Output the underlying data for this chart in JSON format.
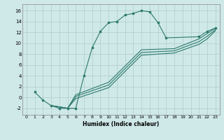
{
  "title": "",
  "xlabel": "Humidex (Indice chaleur)",
  "background_color": "#cfe8e8",
  "grid_color": "#b0cccc",
  "line_color": "#2d7b6e",
  "xlim": [
    -0.5,
    23.5
  ],
  "ylim": [
    -3.2,
    17.2
  ],
  "xticks": [
    0,
    1,
    2,
    3,
    4,
    5,
    6,
    7,
    8,
    9,
    10,
    11,
    12,
    13,
    14,
    15,
    16,
    17,
    18,
    19,
    20,
    21,
    22,
    23
  ],
  "yticks": [
    -2,
    0,
    2,
    4,
    6,
    8,
    10,
    12,
    14,
    16
  ],
  "curve1_x": [
    1,
    2,
    3,
    4,
    5,
    6,
    7,
    8,
    9,
    10,
    11,
    12,
    13,
    14,
    15,
    16,
    17,
    21,
    22,
    23
  ],
  "curve1_y": [
    1,
    -0.5,
    -1.5,
    -2,
    -2,
    -2,
    4,
    9.2,
    12.2,
    13.8,
    14.0,
    15.2,
    15.5,
    16.0,
    15.8,
    13.8,
    11.0,
    11.2,
    12.2,
    12.8
  ],
  "curve2_x": [
    3,
    5,
    6,
    10,
    14,
    18,
    21,
    22,
    23
  ],
  "curve2_y": [
    -1.5,
    -2,
    0.5,
    2.8,
    8.8,
    9.0,
    10.8,
    11.8,
    12.8
  ],
  "curve3_x": [
    3,
    5,
    6,
    10,
    14,
    18,
    21,
    22,
    23
  ],
  "curve3_y": [
    -1.5,
    -2,
    0.2,
    2.3,
    8.3,
    8.6,
    10.3,
    11.3,
    12.5
  ],
  "curve4_x": [
    3,
    5,
    6,
    10,
    14,
    18,
    21,
    22,
    23
  ],
  "curve4_y": [
    -1.5,
    -2,
    -0.2,
    1.8,
    7.8,
    8.2,
    9.8,
    10.8,
    12.3
  ]
}
